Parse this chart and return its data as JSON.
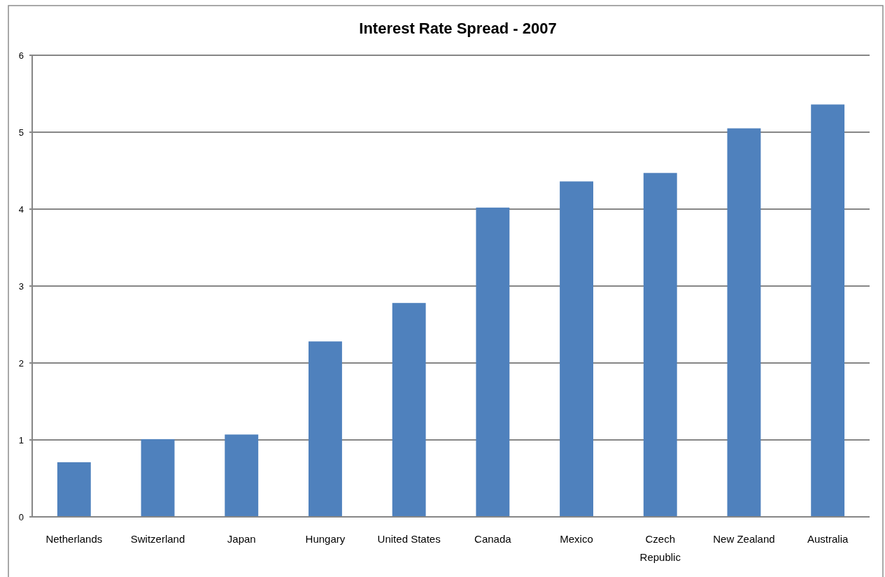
{
  "chart_data": {
    "type": "bar",
    "title": "Interest Rate Spread - 2007",
    "categories": [
      "Netherlands",
      "Switzerland",
      "Japan",
      "Hungary",
      "United States",
      "Canada",
      "Mexico",
      "Czech Republic",
      "New Zealand",
      "Australia"
    ],
    "values": [
      0.71,
      1.01,
      1.07,
      2.28,
      2.78,
      4.02,
      4.36,
      4.47,
      5.05,
      5.36
    ],
    "color": "#4f81bd",
    "ylim": [
      0,
      6
    ],
    "yticks": [
      0,
      1,
      2,
      3,
      4,
      5,
      6
    ],
    "grid": "y"
  }
}
